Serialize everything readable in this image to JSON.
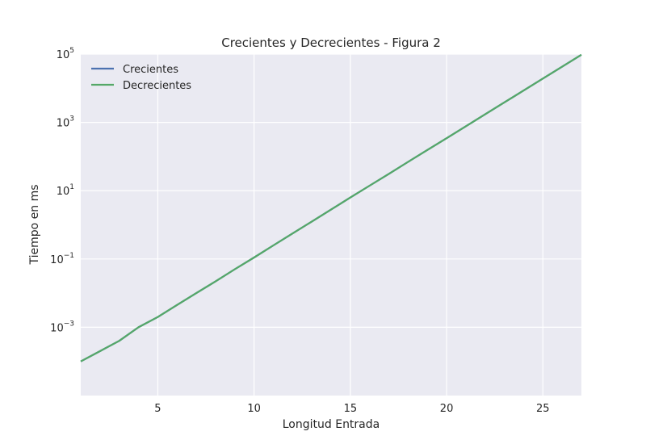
{
  "chart_data": {
    "type": "line",
    "title": "Crecientes y Decrecientes - Figura 2",
    "xlabel": "Longitud Entrada",
    "ylabel": "Tiempo en ms",
    "xlim": [
      1,
      27
    ],
    "ylim": [
      1e-05,
      100000
    ],
    "yscale": "log",
    "xticks": [
      5,
      10,
      15,
      20,
      25
    ],
    "yticks": [
      {
        "value": 0.001,
        "base": "10",
        "exp": "−3"
      },
      {
        "value": 0.1,
        "base": "10",
        "exp": "−1"
      },
      {
        "value": 10,
        "base": "10",
        "exp": "1"
      },
      {
        "value": 1000,
        "base": "10",
        "exp": "3"
      },
      {
        "value": 100000,
        "base": "10",
        "exp": "5"
      }
    ],
    "grid": true,
    "legend_position": "top-left",
    "x": [
      1,
      2,
      3,
      4,
      5,
      6,
      7,
      8,
      9,
      10,
      11,
      12,
      13,
      14,
      15,
      16,
      17,
      18,
      19,
      20,
      21,
      22,
      23,
      24,
      25,
      26,
      27
    ],
    "series": [
      {
        "name": "Crecientes",
        "color": "#4c72b0",
        "values": [
          0.0001,
          0.0002,
          0.0004,
          0.001,
          0.002,
          0.0045,
          0.01,
          0.022,
          0.05,
          0.11,
          0.25,
          0.56,
          1.25,
          2.8,
          6.3,
          14,
          31,
          70,
          155,
          345,
          770,
          1720,
          3850,
          8600,
          19200,
          42800,
          95500
        ]
      },
      {
        "name": "Decrecientes",
        "color": "#55a868",
        "values": [
          0.0001,
          0.0002,
          0.0004,
          0.001,
          0.002,
          0.0045,
          0.01,
          0.022,
          0.05,
          0.11,
          0.25,
          0.56,
          1.25,
          2.8,
          6.3,
          14,
          31,
          70,
          155,
          345,
          770,
          1720,
          3850,
          8600,
          19200,
          42800,
          95500
        ]
      }
    ]
  }
}
